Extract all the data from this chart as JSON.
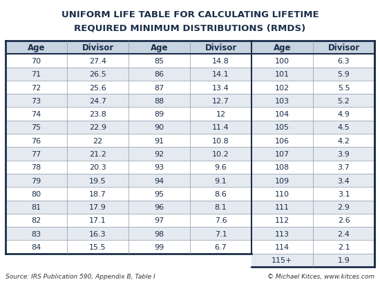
{
  "title_line1": "UNIFORM LIFE TABLE FOR CALCULATING LIFETIME",
  "title_line2": "REQUIRED MINIMUM DISTRIBUTIONS (RMDS)",
  "title_color": "#1a2e4a",
  "background_color": "#ffffff",
  "outer_border_color": "#1a2e4a",
  "inner_line_color": "#8899aa",
  "header_bg": "#c8d4e0",
  "row_alt_color": "#e4eaf0",
  "row_normal_color": "#ffffff",
  "text_color": "#1a2e4a",
  "footer_left": "Source: IRS Publication 590, Appendix B, Table I",
  "footer_right": "© Michael Kitces, www.kitces.com",
  "footer_right_link": "www.kitces.com",
  "col1_age": [
    "70",
    "71",
    "72",
    "73",
    "74",
    "75",
    "76",
    "77",
    "78",
    "79",
    "80",
    "81",
    "82",
    "83",
    "84"
  ],
  "col1_div": [
    "27.4",
    "26.5",
    "25.6",
    "24.7",
    "23.8",
    "22.9",
    "22",
    "21.2",
    "20.3",
    "19.5",
    "18.7",
    "17.9",
    "17.1",
    "16.3",
    "15.5"
  ],
  "col2_age": [
    "85",
    "86",
    "87",
    "88",
    "89",
    "90",
    "91",
    "92",
    "93",
    "94",
    "95",
    "96",
    "97",
    "98",
    "99"
  ],
  "col2_div": [
    "14.8",
    "14.1",
    "13.4",
    "12.7",
    "12",
    "11.4",
    "10.8",
    "10.2",
    "9.6",
    "9.1",
    "8.6",
    "8.1",
    "7.6",
    "7.1",
    "6.7"
  ],
  "col3_age": [
    "100",
    "101",
    "102",
    "103",
    "104",
    "105",
    "106",
    "107",
    "108",
    "109",
    "110",
    "111",
    "112",
    "113",
    "114",
    "115+"
  ],
  "col3_div": [
    "6.3",
    "5.9",
    "5.5",
    "5.2",
    "4.9",
    "4.5",
    "4.2",
    "3.9",
    "3.7",
    "3.4",
    "3.1",
    "2.9",
    "2.6",
    "2.4",
    "2.1",
    "1.9"
  ]
}
